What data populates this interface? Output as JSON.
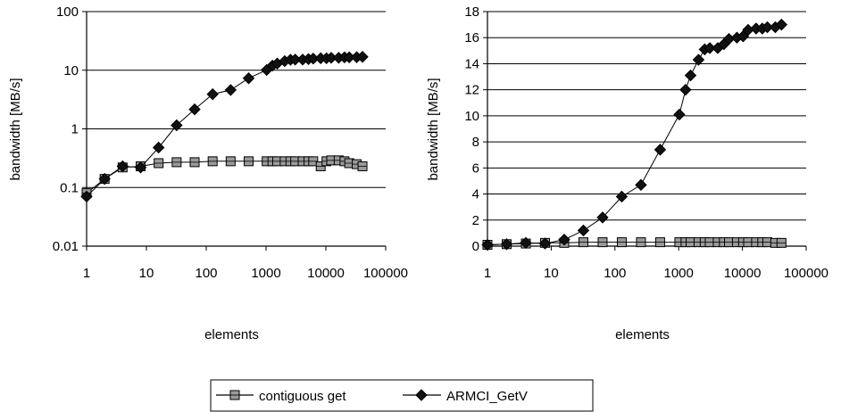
{
  "chart_data": [
    {
      "type": "line",
      "xlabel": "elements",
      "ylabel": "bandwidth [MB/s]",
      "xscale": "log",
      "yscale": "log",
      "xlim": [
        1,
        100000
      ],
      "ylim": [
        0.01,
        100
      ],
      "x_ticks": [
        "1",
        "10",
        "100",
        "1000",
        "10000",
        "100000"
      ],
      "y_ticks": [
        "0.01",
        "0.1",
        "1",
        "10",
        "100"
      ],
      "grid": "horizontal",
      "x": [
        1,
        2,
        4,
        8,
        16,
        32,
        64,
        128,
        256,
        512,
        1024,
        1280,
        1536,
        2048,
        2560,
        3072,
        4096,
        5120,
        6144,
        8192,
        10240,
        12288,
        16384,
        20480,
        24576,
        32768,
        40960
      ],
      "series": [
        {
          "name": "contiguous get",
          "marker": "square",
          "values": [
            0.08,
            0.14,
            0.22,
            0.23,
            0.26,
            0.27,
            0.27,
            0.28,
            0.28,
            0.28,
            0.28,
            0.28,
            0.28,
            0.28,
            0.28,
            0.28,
            0.28,
            0.28,
            0.28,
            0.23,
            0.28,
            0.29,
            0.29,
            0.28,
            0.26,
            0.25,
            0.23
          ]
        },
        {
          "name": "ARMCI_GetV",
          "marker": "diamond",
          "values": [
            0.07,
            0.14,
            0.23,
            0.22,
            0.48,
            1.15,
            2.15,
            3.9,
            4.6,
            7.3,
            10.1,
            12.0,
            13.0,
            14.3,
            15.1,
            15.2,
            15.2,
            15.5,
            15.8,
            16.0,
            16.0,
            16.3,
            16.3,
            16.6,
            16.6,
            16.7,
            16.9
          ]
        }
      ]
    },
    {
      "type": "line",
      "xlabel": "elements",
      "ylabel": "bandwidth [MB/s]",
      "xscale": "log",
      "yscale": "linear",
      "xlim": [
        1,
        100000
      ],
      "ylim": [
        0,
        18
      ],
      "x_ticks": [
        "1",
        "10",
        "100",
        "1000",
        "10000",
        "100000"
      ],
      "y_ticks": [
        "0",
        "2",
        "4",
        "6",
        "8",
        "10",
        "12",
        "14",
        "16",
        "18"
      ],
      "grid": "horizontal",
      "x": [
        1,
        2,
        4,
        8,
        16,
        32,
        64,
        128,
        256,
        512,
        1024,
        1280,
        1536,
        2048,
        2560,
        3072,
        4096,
        5120,
        6144,
        8192,
        10240,
        12288,
        16384,
        20480,
        24576,
        32768,
        40960
      ],
      "series": [
        {
          "name": "contiguous get",
          "marker": "square",
          "values": [
            0.1,
            0.15,
            0.2,
            0.25,
            0.25,
            0.3,
            0.3,
            0.3,
            0.3,
            0.3,
            0.3,
            0.3,
            0.3,
            0.3,
            0.3,
            0.3,
            0.3,
            0.3,
            0.3,
            0.3,
            0.3,
            0.3,
            0.3,
            0.3,
            0.3,
            0.25,
            0.25
          ]
        },
        {
          "name": "ARMCI_GetV",
          "marker": "diamond",
          "values": [
            0.1,
            0.15,
            0.25,
            0.2,
            0.5,
            1.2,
            2.2,
            3.8,
            4.7,
            7.4,
            10.1,
            12.0,
            13.1,
            14.3,
            15.1,
            15.2,
            15.2,
            15.5,
            15.9,
            16.0,
            16.1,
            16.6,
            16.7,
            16.7,
            16.8,
            16.8,
            17.0
          ]
        }
      ]
    }
  ],
  "legend": {
    "items": [
      {
        "label": "contiguous get",
        "marker": "square"
      },
      {
        "label": "ARMCI_GetV",
        "marker": "diamond"
      }
    ]
  },
  "colors": {
    "line": "#000000",
    "grid": "#000000",
    "square_fill": "#9a9a9a",
    "diamond_fill": "#111111",
    "background": "#ffffff"
  }
}
